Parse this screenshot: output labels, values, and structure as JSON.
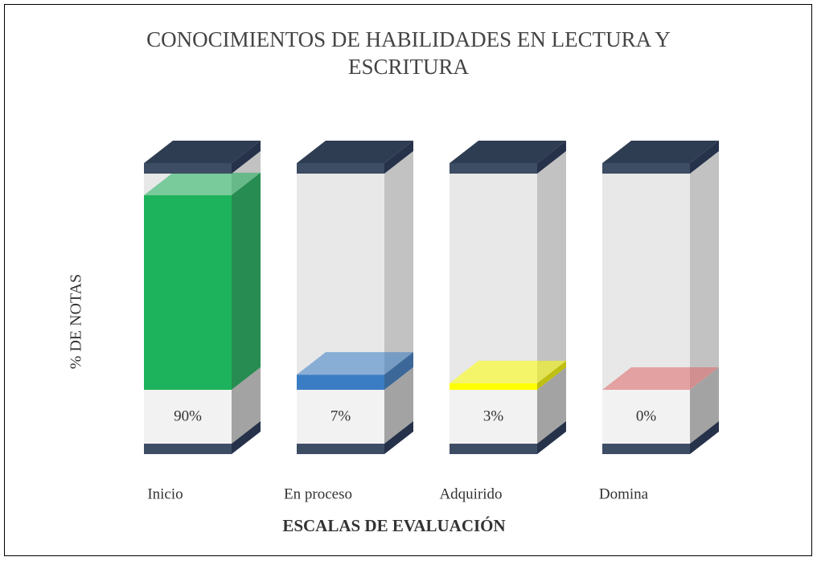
{
  "chart_data": {
    "type": "bar3d",
    "title": "CONOCIMIENTOS DE HABILIDADES EN LECTURA Y ESCRITURA",
    "x_label": "ESCALAS DE EVALUACIÓN",
    "y_label": "% DE NOTAS",
    "categories": [
      "Inicio",
      "En proceso",
      "Adquirido",
      "Domina"
    ],
    "values": [
      90,
      7,
      3,
      0
    ],
    "value_labels": [
      "90%",
      "7%",
      "3%",
      "0%"
    ],
    "colors": [
      "#1db35c",
      "#3b7dc4",
      "#ffff00",
      "#e06666"
    ],
    "ylim": [
      0,
      100
    ]
  }
}
